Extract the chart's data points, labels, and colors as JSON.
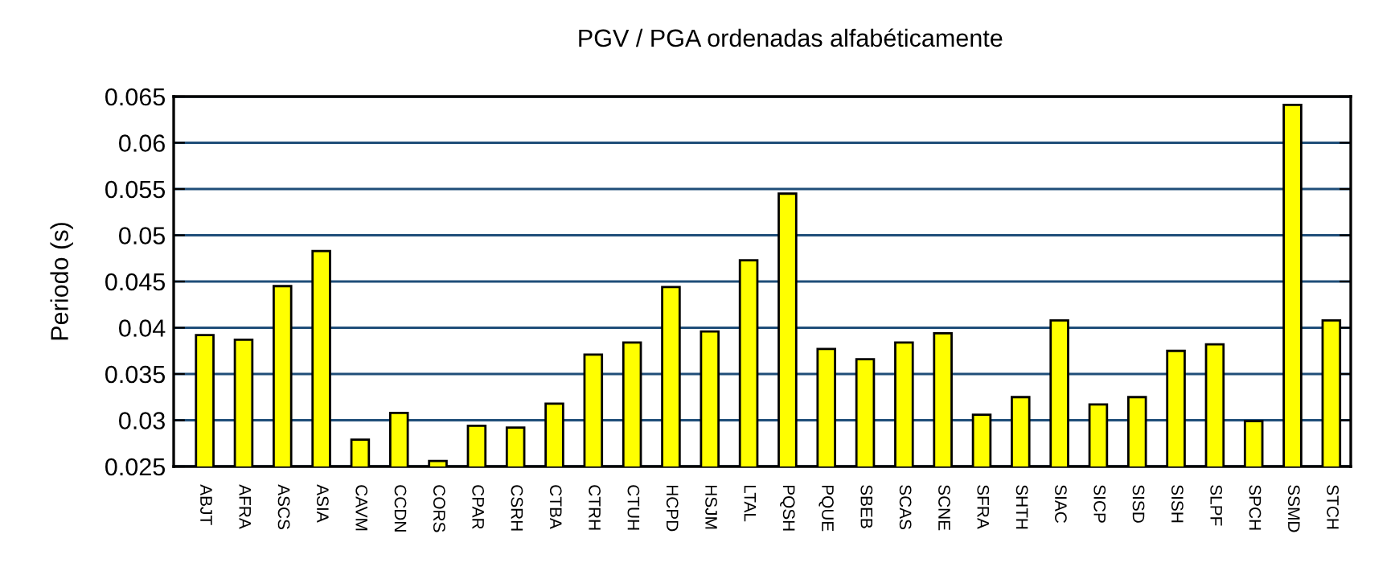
{
  "chart_data": {
    "type": "bar",
    "title": "PGV / PGA ordenadas alfabéticamente",
    "ylabel": "Periodo (s)",
    "categories": [
      "ABJT",
      "AFRA",
      "ASCS",
      "ASIA",
      "CAVM",
      "CCDN",
      "CORS",
      "CPAR",
      "CSRH",
      "CTBA",
      "CTRH",
      "CTUH",
      "HCPD",
      "HSJM",
      "LTAL",
      "PQSH",
      "PQUE",
      "SBEB",
      "SCAS",
      "SCNE",
      "SFRA",
      "SHTH",
      "SIAC",
      "SICP",
      "SISD",
      "SISH",
      "SLPF",
      "SPCH",
      "SSMD",
      "STCH"
    ],
    "values": [
      0.0392,
      0.0387,
      0.0445,
      0.0483,
      0.0279,
      0.0308,
      0.0256,
      0.0294,
      0.0292,
      0.0318,
      0.0371,
      0.0384,
      0.0444,
      0.0396,
      0.0473,
      0.0545,
      0.0377,
      0.0366,
      0.0384,
      0.0394,
      0.0306,
      0.0325,
      0.0408,
      0.0317,
      0.0325,
      0.0375,
      0.0382,
      0.0299,
      0.0641,
      0.0408
    ],
    "color": "#ffff00",
    "ylim": [
      0.025,
      0.065
    ],
    "yticks": [
      0.025,
      0.03,
      0.035,
      0.04,
      0.045,
      0.05,
      0.055,
      0.06,
      0.065
    ],
    "grid": "y"
  }
}
